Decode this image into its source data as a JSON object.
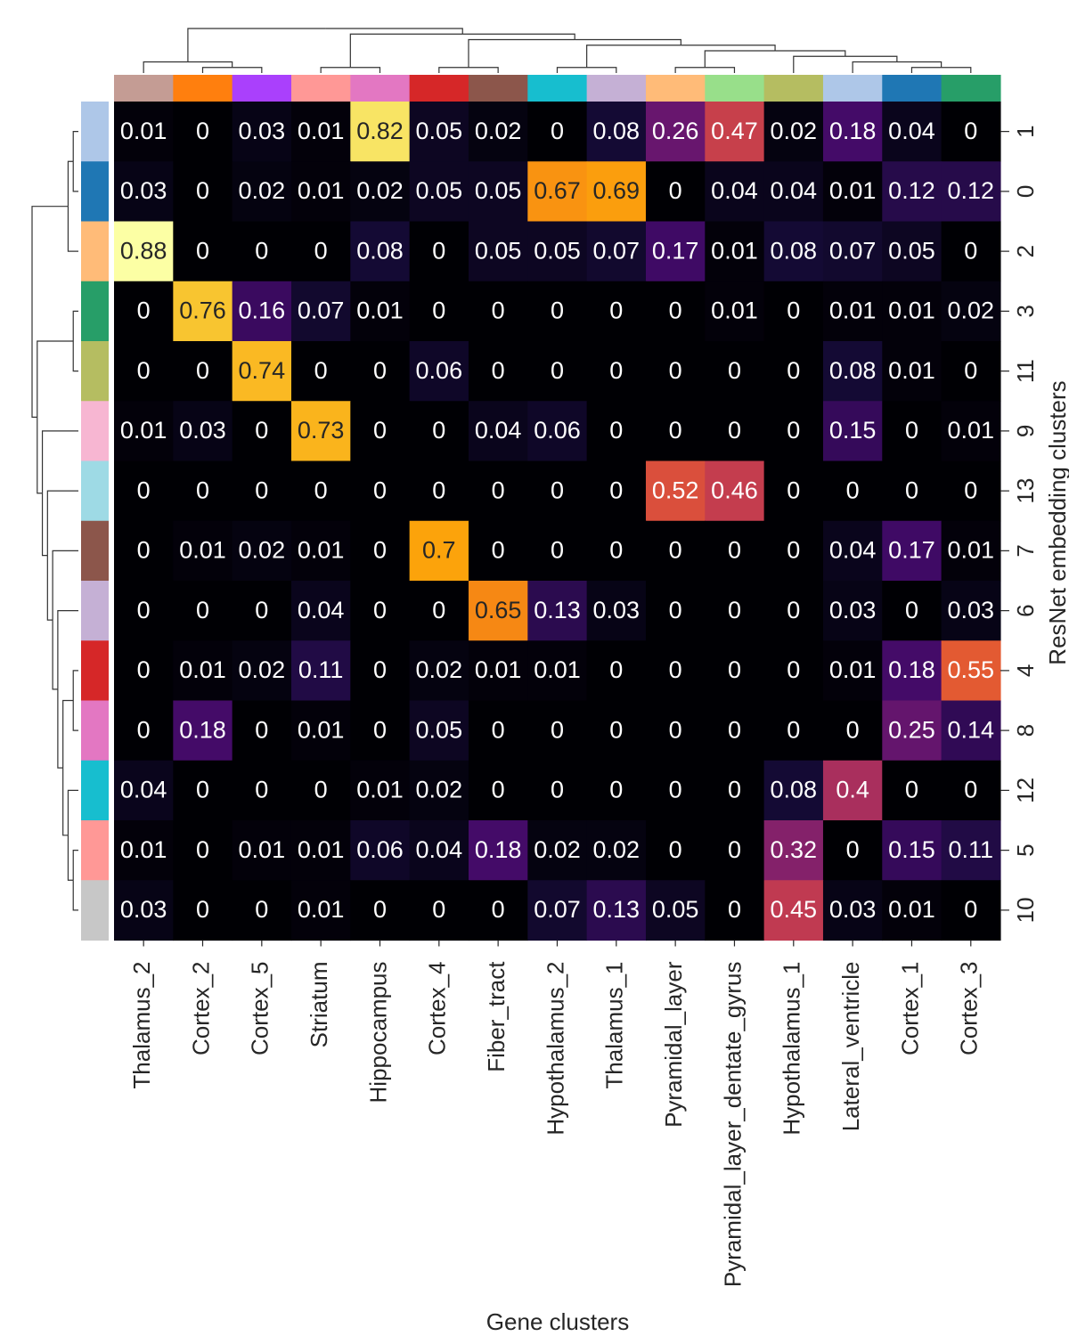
{
  "chart_data": {
    "type": "heatmap",
    "title": "",
    "xlabel": "Gene clusters",
    "ylabel": "ResNet embedding clusters",
    "columns": [
      "Thalamus_2",
      "Cortex_2",
      "Cortex_5",
      "Striatum",
      "Hippocampus",
      "Cortex_4",
      "Fiber_tract",
      "Hypothalamus_2",
      "Thalamus_1",
      "Pyramidal_layer",
      "Pyramidal_layer_dentate_gyrus",
      "Hypothalamus_1",
      "Lateral_ventricle",
      "Cortex_1",
      "Cortex_3"
    ],
    "rows": [
      "1",
      "0",
      "2",
      "3",
      "11",
      "9",
      "13",
      "7",
      "6",
      "4",
      "8",
      "12",
      "5",
      "10"
    ],
    "values": [
      [
        0.01,
        0,
        0.03,
        0.01,
        0.82,
        0.05,
        0.02,
        0,
        0.08,
        0.26,
        0.47,
        0.02,
        0.18,
        0.04,
        0
      ],
      [
        0.03,
        0,
        0.02,
        0.01,
        0.02,
        0.05,
        0.05,
        0.67,
        0.69,
        0,
        0.04,
        0.04,
        0.01,
        0.12,
        0.12
      ],
      [
        0.88,
        0,
        0,
        0,
        0.08,
        0,
        0.05,
        0.05,
        0.07,
        0.17,
        0.01,
        0.08,
        0.07,
        0.05,
        0
      ],
      [
        0,
        0.76,
        0.16,
        0.07,
        0.01,
        0,
        0,
        0,
        0,
        0,
        0.01,
        0,
        0.01,
        0.01,
        0.02
      ],
      [
        0,
        0,
        0.74,
        0,
        0,
        0.06,
        0,
        0,
        0,
        0,
        0,
        0,
        0.08,
        0.01,
        0
      ],
      [
        0.01,
        0.03,
        0,
        0.73,
        0,
        0,
        0.04,
        0.06,
        0,
        0,
        0,
        0,
        0.15,
        0,
        0.01
      ],
      [
        0,
        0,
        0,
        0,
        0,
        0,
        0,
        0,
        0,
        0.52,
        0.46,
        0,
        0,
        0,
        0
      ],
      [
        0,
        0.01,
        0.02,
        0.01,
        0,
        0.7,
        0,
        0,
        0,
        0,
        0,
        0,
        0.04,
        0.17,
        0.01
      ],
      [
        0,
        0,
        0,
        0.04,
        0,
        0,
        0.65,
        0.13,
        0.03,
        0,
        0,
        0,
        0.03,
        0,
        0.03
      ],
      [
        0,
        0.01,
        0.02,
        0.11,
        0,
        0.02,
        0.01,
        0.01,
        0,
        0,
        0,
        0,
        0.01,
        0.18,
        0.55
      ],
      [
        0,
        0.18,
        0,
        0.01,
        0,
        0.05,
        0,
        0,
        0,
        0,
        0,
        0,
        0,
        0.25,
        0.14
      ],
      [
        0.04,
        0,
        0,
        0,
        0.01,
        0.02,
        0,
        0,
        0,
        0,
        0,
        0.08,
        0.4,
        0,
        0
      ],
      [
        0.01,
        0,
        0.01,
        0.01,
        0.06,
        0.04,
        0.18,
        0.02,
        0.02,
        0,
        0,
        0.32,
        0,
        0.15,
        0.11
      ],
      [
        0.03,
        0,
        0,
        0.01,
        0,
        0,
        0,
        0.07,
        0.13,
        0.05,
        0,
        0.45,
        0.03,
        0.01,
        0
      ]
    ],
    "colormap": "inferno",
    "vmin": 0,
    "vmax": 0.88,
    "column_colors": [
      "#c49c94",
      "#ff7f0e",
      "#aa40fc",
      "#ff9896",
      "#e377c2",
      "#d62728",
      "#8c564b",
      "#17becf",
      "#c5b0d5",
      "#ffbb78",
      "#98df8a",
      "#b5bd61",
      "#aec7e8",
      "#1f77b4",
      "#279e68"
    ],
    "row_colors": [
      "#aec7e8",
      "#1f77b4",
      "#ffbb78",
      "#279e68",
      "#b5bd61",
      "#f7b6d2",
      "#9edae5",
      "#8c564b",
      "#c5b0d5",
      "#d62728",
      "#e377c2",
      "#17becf",
      "#ff9896",
      "#c7c7c7"
    ],
    "col_dendrogram": "((Thalamus_2,(Cortex_2,Cortex_5)),((Striatum,Hippocampus),((Cortex_4,Fiber_tract),((Hypothalamus_2,Thalamus_1),((Pyramidal_layer,Pyramidal_layer_dentate_gyrus),(Hypothalamus_1,(Lateral_ventricle,(Cortex_1,Cortex_3))))))))",
    "row_dendrogram": "(((1,0),2),((3,11),(9,(13,(7,(6,((4,8),(12,(5,10)))))))))",
    "grid": false,
    "legend": "none"
  }
}
